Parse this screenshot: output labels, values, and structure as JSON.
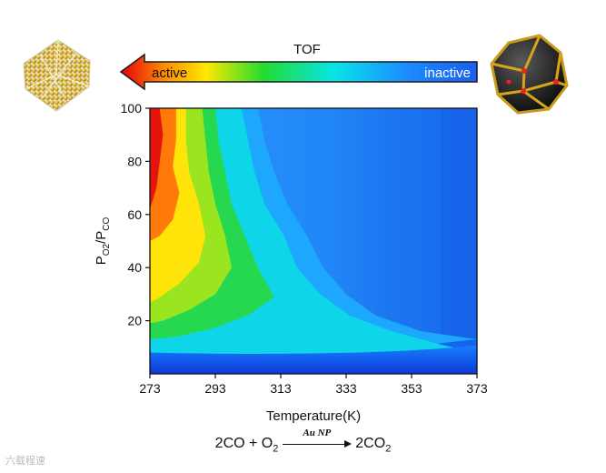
{
  "chart_data": {
    "type": "heatmap",
    "title": "TOF",
    "xlabel": "Temperature(K)",
    "ylabel_main": "P",
    "ylabel_sub1": "O2",
    "ylabel_mid": "/P",
    "ylabel_sub2": "CO",
    "x_ticks": [
      273,
      293,
      313,
      333,
      353,
      373
    ],
    "y_ticks": [
      20,
      40,
      60,
      80,
      100
    ],
    "xlim": [
      273,
      373
    ],
    "ylim": [
      0,
      100
    ],
    "colorbar": {
      "low_label": "active",
      "high_label": "inactive",
      "direction": "left-is-active"
    },
    "boundaries": [
      {
        "level": "red",
        "points": [
          [
            273,
            100
          ],
          [
            276,
            100
          ],
          [
            277,
            90
          ],
          [
            276,
            80
          ],
          [
            275,
            70
          ],
          [
            273,
            62
          ]
        ]
      },
      {
        "level": "orange",
        "points": [
          [
            273,
            100
          ],
          [
            281,
            100
          ],
          [
            281,
            88
          ],
          [
            280,
            78
          ],
          [
            282,
            68
          ],
          [
            280,
            58
          ],
          [
            276,
            52
          ],
          [
            273,
            50
          ]
        ]
      },
      {
        "level": "yellow",
        "points": [
          [
            273,
            100
          ],
          [
            284,
            100
          ],
          [
            284,
            88
          ],
          [
            285,
            76
          ],
          [
            288,
            64
          ],
          [
            290,
            52
          ],
          [
            288,
            42
          ],
          [
            282,
            34
          ],
          [
            275,
            28
          ],
          [
            273,
            27
          ]
        ]
      },
      {
        "level": "yl-green",
        "points": [
          [
            273,
            100
          ],
          [
            289,
            100
          ],
          [
            290,
            88
          ],
          [
            291,
            76
          ],
          [
            293,
            64
          ],
          [
            296,
            52
          ],
          [
            298,
            40
          ],
          [
            293,
            30
          ],
          [
            285,
            24
          ],
          [
            277,
            20
          ],
          [
            273,
            19
          ]
        ]
      },
      {
        "level": "green",
        "points": [
          [
            273,
            100
          ],
          [
            293,
            100
          ],
          [
            294,
            88
          ],
          [
            296,
            76
          ],
          [
            298,
            64
          ],
          [
            302,
            52
          ],
          [
            306,
            40
          ],
          [
            311,
            29
          ],
          [
            303,
            22
          ],
          [
            292,
            17
          ],
          [
            281,
            14
          ],
          [
            273,
            13
          ]
        ]
      },
      {
        "level": "cyan",
        "points": [
          [
            273,
            100
          ],
          [
            301,
            100
          ],
          [
            303,
            88
          ],
          [
            305,
            76
          ],
          [
            308,
            64
          ],
          [
            314,
            52
          ],
          [
            318,
            40
          ],
          [
            325,
            30
          ],
          [
            334,
            22
          ],
          [
            347,
            16
          ],
          [
            362,
            11
          ],
          [
            373,
            8
          ]
        ]
      },
      {
        "level": "lightblue",
        "points": [
          [
            273,
            100
          ],
          [
            306,
            100
          ],
          [
            308,
            88
          ],
          [
            311,
            76
          ],
          [
            315,
            64
          ],
          [
            321,
            52
          ],
          [
            326,
            40
          ],
          [
            333,
            30
          ],
          [
            342,
            22
          ],
          [
            356,
            16
          ],
          [
            373,
            13
          ]
        ]
      }
    ],
    "low_band_y": 6
  },
  "equation": {
    "left": "2CO + O",
    "left_sub": "2",
    "catalyst": "Au NP",
    "right": "2CO",
    "right_sub": "2"
  },
  "watermark": "六载程速"
}
